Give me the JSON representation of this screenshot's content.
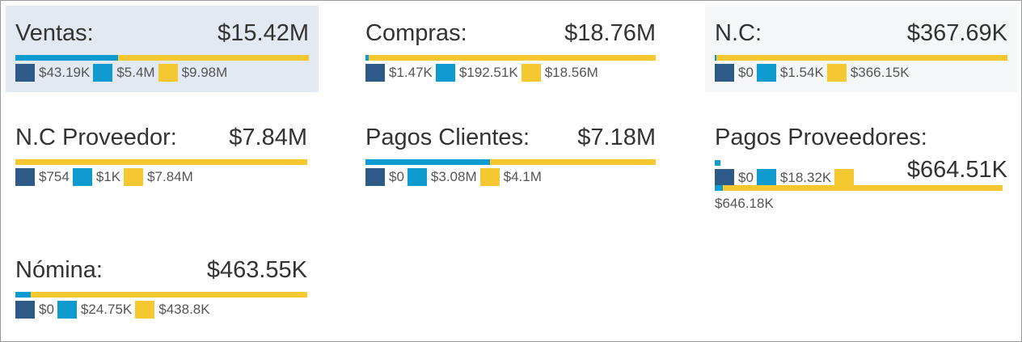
{
  "colors": {
    "series1": "#2e5a87",
    "series2": "#0f9bd0",
    "series3": "#f5c730",
    "highlight_bg": "#e3e9f3"
  },
  "cards": {
    "ventas": {
      "title": "Ventas:",
      "total": "$15.42M",
      "values": [
        "$43.19K",
        "$5.4M",
        "$9.98M"
      ],
      "shares": [
        0,
        0.35,
        0.65
      ]
    },
    "compras": {
      "title": "Compras:",
      "total": "$18.76M",
      "values": [
        "$1.47K",
        "$192.51K",
        "$18.56M"
      ],
      "shares": [
        0,
        0.0103,
        0.9897
      ]
    },
    "nc": {
      "title": "N.C:",
      "total": "$367.69K",
      "values": [
        "$0",
        "$1.54K",
        "$366.15K"
      ],
      "shares": [
        0,
        0.0042,
        0.9958
      ]
    },
    "nc_proveedor": {
      "title": "N.C Proveedor:",
      "total": "$7.84M",
      "values": [
        "$754",
        "$1K",
        "$7.84M"
      ],
      "shares": [
        0,
        0.0001,
        0.9999
      ]
    },
    "pagos_clientes": {
      "title": "Pagos Clientes:",
      "total": "$7.18M",
      "values": [
        "$0",
        "$3.08M",
        "$4.1M"
      ],
      "shares": [
        0,
        0.429,
        0.571
      ]
    },
    "pagos_proveedores": {
      "title": "Pagos Proveedores:",
      "total": "$664.51K",
      "values": [
        "$0",
        "$18.32K",
        "$646.18K"
      ],
      "shares": [
        0,
        0.0276,
        0.9724
      ]
    },
    "nomina": {
      "title": "Nómina:",
      "total": "$463.55K",
      "values": [
        "$0",
        "$24.75K",
        "$438.8K"
      ],
      "shares": [
        0,
        0.0534,
        0.9466
      ]
    }
  }
}
